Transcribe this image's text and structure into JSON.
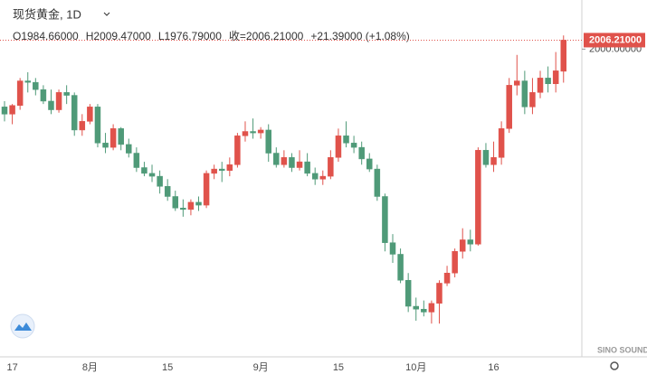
{
  "chart_data": {
    "type": "candlestick",
    "title": "现货黄金, 1D",
    "info": [
      "O1984.66000",
      "H2009.47000",
      "L1976.79000",
      "收=2006.21000",
      "+21.39000 (+1.08%)"
    ],
    "watermark": "SINO SOUND",
    "up_color": "#e0524b",
    "down_color": "#4f9a78",
    "ylim": [
      1787,
      2034
    ],
    "yticks": [
      {
        "value": 2000,
        "label": "2000.00000"
      }
    ],
    "last_price": {
      "value": 2006.21,
      "label": "2006.21000"
    },
    "categories": [
      null,
      "17",
      null,
      null,
      null,
      null,
      null,
      null,
      null,
      null,
      null,
      "8月",
      null,
      null,
      null,
      null,
      null,
      null,
      null,
      null,
      null,
      "15",
      null,
      null,
      null,
      null,
      null,
      null,
      null,
      null,
      null,
      null,
      null,
      "9月",
      null,
      null,
      null,
      null,
      null,
      null,
      null,
      null,
      null,
      "15",
      null,
      null,
      null,
      null,
      null,
      null,
      null,
      null,
      null,
      "10月",
      null,
      null,
      null,
      null,
      null,
      null,
      null,
      null,
      null,
      "16",
      null,
      null,
      null,
      null,
      null,
      null,
      null,
      null,
      null
    ],
    "open": [
      1960,
      1955,
      1961,
      1978,
      1977,
      1972,
      1964,
      1958,
      1970,
      1968,
      1944,
      1950,
      1960,
      1935,
      1932,
      1945,
      1934,
      1928,
      1918,
      1914,
      1912,
      1905,
      1898,
      1890,
      1889,
      1894,
      1892,
      1914,
      1917,
      1916,
      1920,
      1940,
      1943,
      1942,
      1944,
      1928,
      1920,
      1925,
      1918,
      1922,
      1914,
      1910,
      1912,
      1925,
      1940,
      1935,
      1932,
      1924,
      1917,
      1898,
      1866,
      1858,
      1840,
      1822,
      1820,
      1818,
      1824,
      1838,
      1845,
      1860,
      1868,
      1865,
      1930,
      1920,
      1925,
      1945,
      1975,
      1978,
      1960,
      1970,
      1980,
      1976,
      1984.66
    ],
    "high": [
      1964,
      1962,
      1980,
      1984,
      1980,
      1975,
      1972,
      1972,
      1975,
      1970,
      1955,
      1962,
      1962,
      1942,
      1948,
      1946,
      1938,
      1932,
      1922,
      1920,
      1916,
      1910,
      1902,
      1896,
      1896,
      1898,
      1916,
      1920,
      1922,
      1925,
      1942,
      1950,
      1952,
      1946,
      1948,
      1932,
      1930,
      1928,
      1930,
      1928,
      1918,
      1916,
      1930,
      1945,
      1950,
      1940,
      1936,
      1928,
      1920,
      1900,
      1872,
      1862,
      1845,
      1828,
      1826,
      1826,
      1840,
      1850,
      1862,
      1876,
      1875,
      1932,
      1935,
      1936,
      1950,
      1980,
      1996,
      1985,
      1980,
      1985,
      1988,
      1998,
      2009.47
    ],
    "low": [
      1950,
      1948,
      1958,
      1970,
      1968,
      1962,
      1955,
      1956,
      1962,
      1940,
      1940,
      1948,
      1932,
      1928,
      1930,
      1930,
      1925,
      1915,
      1912,
      1908,
      1900,
      1895,
      1888,
      1884,
      1885,
      1888,
      1890,
      1910,
      1908,
      1912,
      1918,
      1936,
      1938,
      1938,
      1922,
      1918,
      1918,
      1915,
      1916,
      1912,
      1906,
      1906,
      1910,
      1922,
      1932,
      1928,
      1920,
      1915,
      1895,
      1860,
      1852,
      1838,
      1818,
      1812,
      1815,
      1810,
      1810,
      1836,
      1842,
      1855,
      1860,
      1864,
      1918,
      1915,
      1920,
      1942,
      1968,
      1955,
      1955,
      1966,
      1970,
      1970,
      1976.79
    ],
    "close": [
      1955,
      1961,
      1978,
      1977,
      1972,
      1964,
      1958,
      1970,
      1968,
      1944,
      1950,
      1960,
      1935,
      1932,
      1945,
      1934,
      1928,
      1918,
      1914,
      1912,
      1905,
      1898,
      1890,
      1889,
      1894,
      1892,
      1914,
      1917,
      1916,
      1920,
      1940,
      1943,
      1942,
      1944,
      1928,
      1920,
      1925,
      1918,
      1922,
      1914,
      1910,
      1912,
      1925,
      1940,
      1935,
      1932,
      1924,
      1917,
      1898,
      1866,
      1858,
      1840,
      1822,
      1820,
      1818,
      1824,
      1838,
      1845,
      1860,
      1868,
      1865,
      1930,
      1920,
      1925,
      1945,
      1975,
      1978,
      1960,
      1970,
      1980,
      1976,
      1985,
      2006.21
    ]
  }
}
